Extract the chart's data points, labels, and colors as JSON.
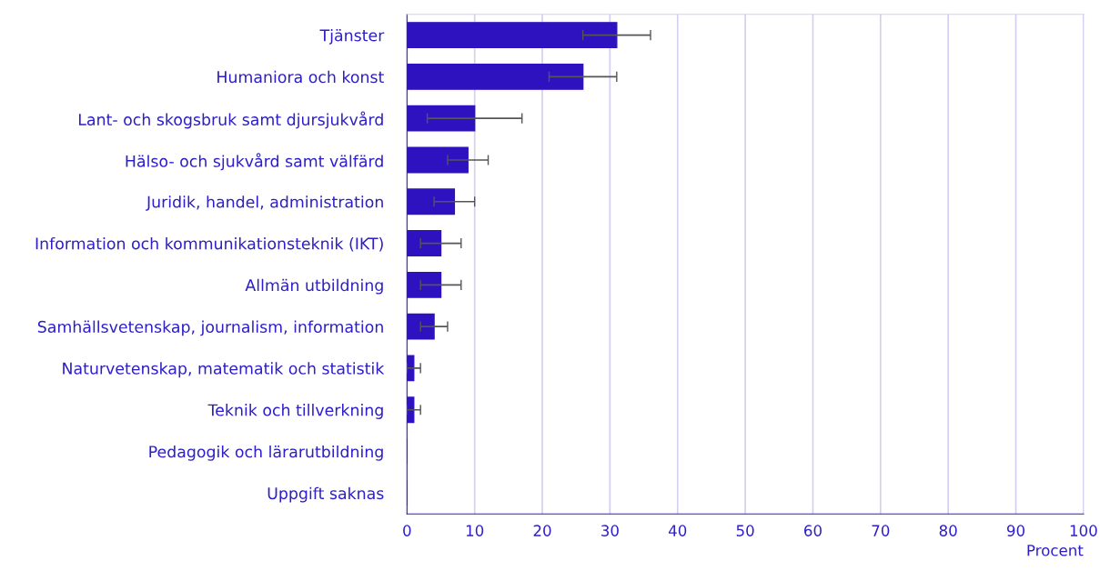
{
  "chart_data": {
    "type": "bar",
    "orientation": "horizontal",
    "xlabel": "Procent",
    "categories": [
      "Tjänster",
      "Humaniora och konst",
      "Lant- och skogsbruk samt djursjukvård",
      "Hälso- och sjukvård samt välfärd",
      "Juridik, handel, administration",
      "Information och kommunikationsteknik (IKT)",
      "Allmän utbildning",
      "Samhällsvetenskap, journalism, information",
      "Naturvetenskap, matematik och statistik",
      "Teknik och tillverkning",
      "Pedagogik och lärarutbildning",
      "Uppgift saknas"
    ],
    "values": [
      31,
      26,
      10,
      9,
      7,
      5,
      5,
      4,
      1,
      1,
      0,
      0
    ],
    "errors": [
      [
        26,
        36
      ],
      [
        21,
        31
      ],
      [
        3,
        17
      ],
      [
        6,
        12
      ],
      [
        4,
        10
      ],
      [
        2,
        8
      ],
      [
        2,
        8
      ],
      [
        2,
        6
      ],
      [
        0,
        2
      ],
      [
        0,
        2
      ],
      null,
      null
    ],
    "color": "#2f12bf",
    "xlim": [
      0,
      100
    ],
    "xticks": [
      0,
      10,
      20,
      30,
      40,
      50,
      60,
      70,
      80,
      90,
      100
    ],
    "grid": "x",
    "legend": false
  }
}
